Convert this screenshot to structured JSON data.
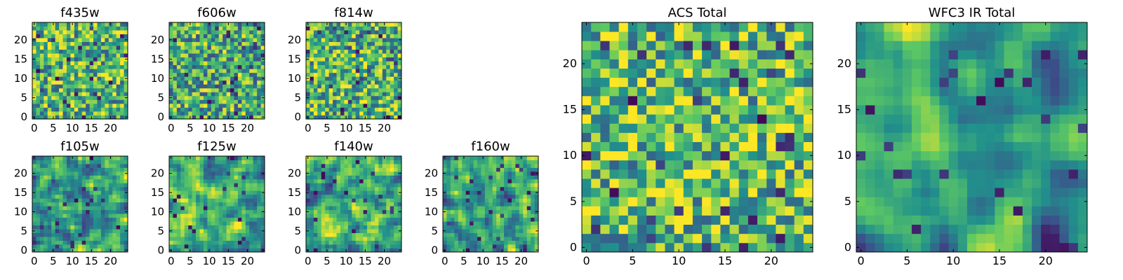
{
  "figure": {
    "colormap": "viridis",
    "colormap_stops": [
      "#440154",
      "#3b528b",
      "#21918c",
      "#5ec962",
      "#fde725"
    ]
  },
  "chart_data": [
    {
      "type": "heatmap",
      "title": "f435w",
      "grid_size": 25,
      "xlim": [
        0,
        24
      ],
      "ylim": [
        0,
        24
      ],
      "xticks": [
        0,
        5,
        10,
        15,
        20
      ],
      "yticks": [
        0,
        5,
        10,
        15,
        20
      ],
      "seed": 11,
      "smooth": 0,
      "bias": 0.66
    },
    {
      "type": "heatmap",
      "title": "f606w",
      "grid_size": 25,
      "xlim": [
        0,
        24
      ],
      "ylim": [
        0,
        24
      ],
      "xticks": [
        0,
        5,
        10,
        15,
        20
      ],
      "yticks": [
        0,
        5,
        10,
        15,
        20
      ],
      "seed": 23,
      "smooth": 0,
      "bias": 0.62
    },
    {
      "type": "heatmap",
      "title": "f814w",
      "grid_size": 25,
      "xlim": [
        0,
        24
      ],
      "ylim": [
        0,
        24
      ],
      "xticks": [
        0,
        5,
        10,
        15,
        20
      ],
      "yticks": [
        0,
        5,
        10,
        15,
        20
      ],
      "seed": 37,
      "smooth": 0,
      "bias": 0.66
    },
    {
      "type": "heatmap",
      "title": "f105w",
      "grid_size": 25,
      "xlim": [
        0,
        24
      ],
      "ylim": [
        0,
        24
      ],
      "xticks": [
        0,
        5,
        10,
        15,
        20
      ],
      "yticks": [
        0,
        5,
        10,
        15,
        20
      ],
      "seed": 41,
      "smooth": 1,
      "bias": 0.6
    },
    {
      "type": "heatmap",
      "title": "f125w",
      "grid_size": 25,
      "xlim": [
        0,
        24
      ],
      "ylim": [
        0,
        24
      ],
      "xticks": [
        0,
        5,
        10,
        15,
        20
      ],
      "yticks": [
        0,
        5,
        10,
        15,
        20
      ],
      "seed": 53,
      "smooth": 1,
      "bias": 0.6
    },
    {
      "type": "heatmap",
      "title": "f140w",
      "grid_size": 25,
      "xlim": [
        0,
        24
      ],
      "ylim": [
        0,
        24
      ],
      "xticks": [
        0,
        5,
        10,
        15,
        20
      ],
      "yticks": [
        0,
        5,
        10,
        15,
        20
      ],
      "seed": 67,
      "smooth": 1,
      "bias": 0.6
    },
    {
      "type": "heatmap",
      "title": "f160w",
      "grid_size": 25,
      "xlim": [
        0,
        24
      ],
      "ylim": [
        0,
        24
      ],
      "xticks": [
        0,
        5,
        10,
        15,
        20
      ],
      "yticks": [
        0,
        5,
        10,
        15,
        20
      ],
      "seed": 79,
      "smooth": 1,
      "bias": 0.56
    },
    {
      "type": "heatmap",
      "title": "ACS Total",
      "grid_size": 25,
      "xlim": [
        0,
        24
      ],
      "ylim": [
        0,
        24
      ],
      "xticks": [
        0,
        5,
        10,
        15,
        20
      ],
      "yticks": [
        0,
        5,
        10,
        15,
        20
      ],
      "seed": 97,
      "smooth": 0,
      "bias": 0.68
    },
    {
      "type": "heatmap",
      "title": "WFC3 IR Total",
      "grid_size": 25,
      "xlim": [
        0,
        24
      ],
      "ylim": [
        0,
        24
      ],
      "xticks": [
        0,
        5,
        10,
        15,
        20
      ],
      "yticks": [
        0,
        5,
        10,
        15,
        20
      ],
      "seed": 131,
      "smooth": 2,
      "bias": 0.55
    }
  ]
}
